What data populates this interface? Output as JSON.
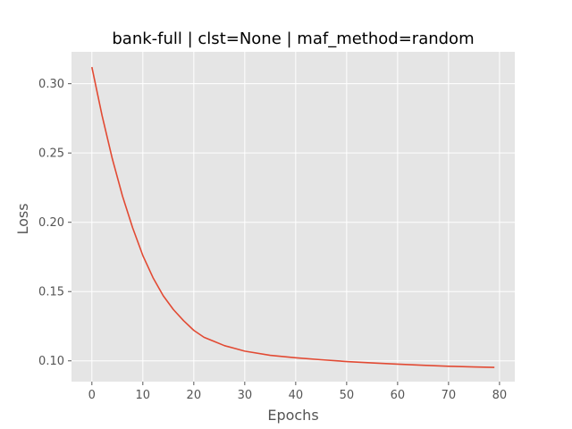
{
  "chart_data": {
    "type": "line",
    "title": "bank-full | clst=None | maf_method=random",
    "xlabel": "Epochs",
    "ylabel": "Loss",
    "xlim": [
      -4,
      83
    ],
    "ylim": [
      0.085,
      0.323
    ],
    "xticks": [
      0,
      10,
      20,
      30,
      40,
      50,
      60,
      70,
      80
    ],
    "yticks": [
      0.1,
      0.15,
      0.2,
      0.25,
      0.3
    ],
    "ytick_labels": [
      "0.10",
      "0.15",
      "0.20",
      "0.25",
      "0.30"
    ],
    "grid": true,
    "colors": {
      "background": "#e5e5e5",
      "grid": "#ffffff",
      "line": "#e24a33"
    },
    "series": [
      {
        "x": [
          0,
          2,
          4,
          6,
          8,
          10,
          12,
          14,
          16,
          18,
          20,
          22,
          24,
          26,
          28,
          30,
          35,
          40,
          45,
          50,
          55,
          60,
          65,
          70,
          75,
          79
        ],
        "y": [
          0.312,
          0.277,
          0.246,
          0.219,
          0.196,
          0.176,
          0.16,
          0.147,
          0.137,
          0.129,
          0.122,
          0.117,
          0.114,
          0.111,
          0.109,
          0.107,
          0.104,
          0.1022,
          0.1008,
          0.0995,
          0.0985,
          0.0976,
          0.0968,
          0.0961,
          0.0956,
          0.0953
        ]
      }
    ]
  }
}
